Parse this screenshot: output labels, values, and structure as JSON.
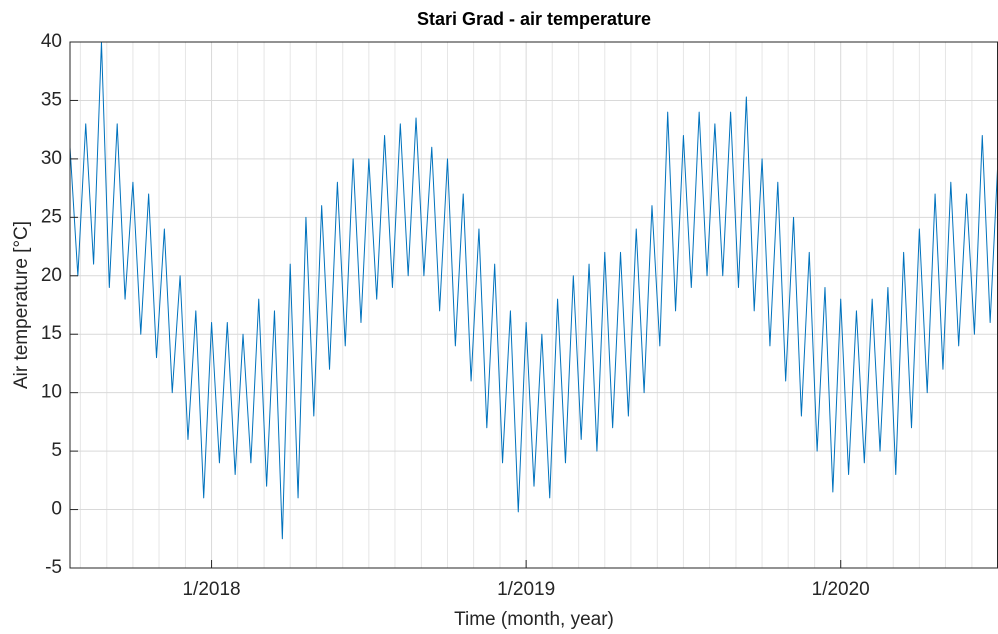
{
  "chart_data": {
    "type": "line",
    "title": "Stari Grad - air temperature",
    "xlabel": "Time (month, year)",
    "ylabel": "Air temperature [°C]",
    "x": [
      2017.55,
      2017.575,
      2017.6,
      2017.625,
      2017.65,
      2017.675,
      2017.7,
      2017.725,
      2017.75,
      2017.775,
      2017.8,
      2017.825,
      2017.85,
      2017.875,
      2017.9,
      2017.925,
      2017.95,
      2017.975,
      2018.0,
      2018.025,
      2018.05,
      2018.075,
      2018.1,
      2018.125,
      2018.15,
      2018.175,
      2018.2,
      2018.225,
      2018.25,
      2018.275,
      2018.3,
      2018.325,
      2018.35,
      2018.375,
      2018.4,
      2018.425,
      2018.45,
      2018.475,
      2018.5,
      2018.525,
      2018.55,
      2018.575,
      2018.6,
      2018.625,
      2018.65,
      2018.675,
      2018.7,
      2018.725,
      2018.75,
      2018.775,
      2018.8,
      2018.825,
      2018.85,
      2018.875,
      2018.9,
      2018.925,
      2018.95,
      2018.975,
      2019.0,
      2019.025,
      2019.05,
      2019.075,
      2019.1,
      2019.125,
      2019.15,
      2019.175,
      2019.2,
      2019.225,
      2019.25,
      2019.275,
      2019.3,
      2019.325,
      2019.35,
      2019.375,
      2019.4,
      2019.425,
      2019.45,
      2019.475,
      2019.5,
      2019.525,
      2019.55,
      2019.575,
      2019.6,
      2019.625,
      2019.65,
      2019.675,
      2019.7,
      2019.725,
      2019.75,
      2019.775,
      2019.8,
      2019.825,
      2019.85,
      2019.875,
      2019.9,
      2019.925,
      2019.95,
      2019.975,
      2020.0,
      2020.025,
      2020.05,
      2020.075,
      2020.1,
      2020.125,
      2020.15,
      2020.175,
      2020.2,
      2020.225,
      2020.25,
      2020.275,
      2020.3,
      2020.325,
      2020.35,
      2020.375,
      2020.4,
      2020.425,
      2020.45,
      2020.475,
      2020.5
    ],
    "series": [
      {
        "color": "#0072bd",
        "values": [
          31,
          20,
          33,
          21,
          40,
          19,
          33,
          18,
          28,
          15,
          27,
          13,
          24,
          10,
          20,
          6,
          17,
          1,
          16,
          4,
          16,
          3,
          15,
          4,
          18,
          2,
          17,
          -2.5,
          21,
          1,
          25,
          8,
          26,
          12,
          28,
          14,
          30,
          16,
          30,
          18,
          32,
          19,
          33,
          20,
          33.5,
          20,
          31,
          17,
          30,
          14,
          27,
          11,
          24,
          7,
          21,
          4,
          17,
          -0.2,
          16,
          2,
          15,
          1,
          18,
          4,
          20,
          6,
          21,
          5,
          22,
          7,
          22,
          8,
          24,
          10,
          26,
          14,
          34,
          17,
          32,
          19,
          34,
          20,
          33,
          20,
          34,
          19,
          35.3,
          17,
          30,
          14,
          28,
          11,
          25,
          8,
          22,
          5,
          19,
          1.5,
          18,
          3,
          17,
          4,
          18,
          5,
          19,
          3,
          22,
          7,
          24,
          10,
          27,
          12,
          28,
          14,
          27,
          15,
          32,
          16,
          30
        ]
      }
    ],
    "xlim": [
      2017.55,
      2020.5
    ],
    "xticks": [
      {
        "value": 2018,
        "label": "1/2018"
      },
      {
        "value": 2019,
        "label": "1/2019"
      },
      {
        "value": 2020,
        "label": "1/2020"
      }
    ],
    "xminorticks": [
      2017.583,
      2017.667,
      2017.75,
      2017.833,
      2017.917,
      2018.083,
      2018.167,
      2018.25,
      2018.333,
      2018.417,
      2018.5,
      2018.583,
      2018.667,
      2018.75,
      2018.833,
      2018.917,
      2019.083,
      2019.167,
      2019.25,
      2019.333,
      2019.417,
      2019.5,
      2019.583,
      2019.667,
      2019.75,
      2019.833,
      2019.917,
      2020.083,
      2020.167,
      2020.25,
      2020.333,
      2020.417,
      2020.5
    ],
    "ylim": [
      -5,
      40
    ],
    "yticks": [
      -5,
      0,
      5,
      10,
      15,
      20,
      25,
      30,
      35,
      40
    ],
    "grid": true
  }
}
